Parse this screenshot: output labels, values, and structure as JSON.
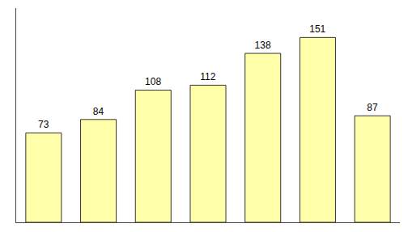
{
  "chart_data": {
    "type": "bar",
    "categories": [
      null,
      null,
      null,
      null,
      null,
      null,
      null
    ],
    "values": [
      73,
      84,
      108,
      112,
      138,
      151,
      87
    ],
    "color": "#ffffaa",
    "ylim": [
      0,
      175
    ],
    "yticks": [],
    "grid": false,
    "data_labels": true,
    "tick_labels": false
  }
}
